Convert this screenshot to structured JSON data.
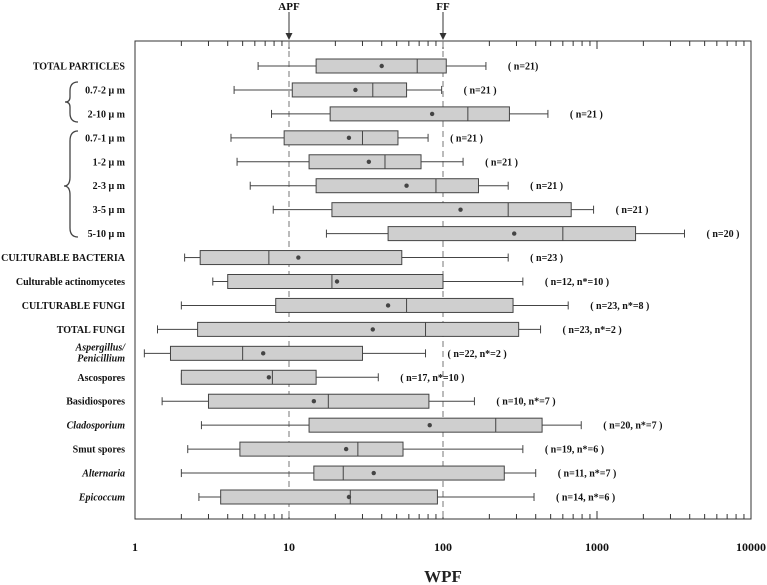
{
  "chart_data": {
    "type": "boxplot",
    "xlabel": "WPF",
    "xscale": "log",
    "xlim": [
      1,
      10000
    ],
    "xticks": [
      "1",
      "10",
      "100",
      "1000",
      "10000"
    ],
    "reference_lines": [
      {
        "label": "APF",
        "x": 10
      },
      {
        "label": "FF",
        "x": 100
      }
    ],
    "categories": [
      {
        "label": "TOTAL PARTICLES",
        "style": "bold",
        "whisker_low": 6.3,
        "q1": 15,
        "median": 68,
        "q3": 105,
        "whisker_high": 190,
        "mean": 40,
        "n": "( n=21)"
      },
      {
        "label": "0.7-2 μ m",
        "style": "bold",
        "whisker_low": 4.4,
        "q1": 10.5,
        "median": 35,
        "q3": 58,
        "whisker_high": 98,
        "mean": 27,
        "n": "( n=21 )"
      },
      {
        "label": "2-10 μ m",
        "style": "bold",
        "whisker_low": 7.7,
        "q1": 18.5,
        "median": 145,
        "q3": 270,
        "whisker_high": 480,
        "mean": 85,
        "n": "( n=21 )"
      },
      {
        "label": "0.7-1 μ m",
        "style": "bold",
        "whisker_low": 4.2,
        "q1": 9.3,
        "median": 30,
        "q3": 51,
        "whisker_high": 80,
        "mean": 24.5,
        "n": "( n=21 )"
      },
      {
        "label": "1-2 μ m",
        "style": "bold",
        "whisker_low": 4.6,
        "q1": 13.5,
        "median": 42,
        "q3": 72,
        "whisker_high": 135,
        "mean": 33,
        "n": "( n=21 )"
      },
      {
        "label": "2-3 μ m",
        "style": "bold",
        "whisker_low": 5.6,
        "q1": 15,
        "median": 90,
        "q3": 170,
        "whisker_high": 265,
        "mean": 58,
        "n": "( n=21 )"
      },
      {
        "label": "3-5 μ m",
        "style": "bold",
        "whisker_low": 7.9,
        "q1": 19,
        "median": 265,
        "q3": 680,
        "whisker_high": 950,
        "mean": 130,
        "n": "( n=21 )"
      },
      {
        "label": "5-10 μ m",
        "style": "bold",
        "whisker_low": 17.5,
        "q1": 44,
        "median": 600,
        "q3": 1780,
        "whisker_high": 3700,
        "mean": 290,
        "n": "( n=20 )"
      },
      {
        "label": "CULTURABLE BACTERIA",
        "style": "bold",
        "whisker_low": 2.1,
        "q1": 2.65,
        "median": 7.4,
        "q3": 54,
        "whisker_high": 265,
        "mean": 11.5,
        "n": "( n=23 )"
      },
      {
        "label": "Culturable actinomycetes",
        "style": "normal",
        "whisker_low": 3.2,
        "q1": 4.0,
        "median": 19,
        "q3": 100,
        "whisker_high": 330,
        "mean": 20.5,
        "n": "( n=12, n*=10 )"
      },
      {
        "label": "CULTURABLE FUNGI",
        "style": "bold",
        "whisker_low": 2.0,
        "q1": 8.2,
        "median": 58,
        "q3": 285,
        "whisker_high": 650,
        "mean": 44,
        "n": "( n=23, n*=8 )"
      },
      {
        "label": "TOTAL FUNGI",
        "style": "bold",
        "whisker_low": 1.4,
        "q1": 2.55,
        "median": 77,
        "q3": 310,
        "whisker_high": 430,
        "mean": 35,
        "n": "( n=23, n*=2 )"
      },
      {
        "label": "Aspergillus/ Penicillium",
        "style": "italic",
        "whisker_low": 1.15,
        "q1": 1.7,
        "median": 5.0,
        "q3": 30,
        "whisker_high": 77,
        "mean": 6.8,
        "n": "( n=22, n*=2 )"
      },
      {
        "label": "Ascospores",
        "style": "normal",
        "whisker_low": 2.0,
        "q1": 2.0,
        "median": 7.8,
        "q3": 15,
        "whisker_high": 38,
        "mean": 7.4,
        "n": "( n=17, n*=10 )"
      },
      {
        "label": "Basidiospores",
        "style": "normal",
        "whisker_low": 1.5,
        "q1": 3.0,
        "median": 18,
        "q3": 81,
        "whisker_high": 160,
        "mean": 14.5,
        "n": "( n=10, n*=7 )"
      },
      {
        "label": "Cladosporium",
        "style": "italic",
        "whisker_low": 2.7,
        "q1": 13.5,
        "median": 220,
        "q3": 440,
        "whisker_high": 790,
        "mean": 82,
        "n": "( n=20, n*=7 )"
      },
      {
        "label": "Smut spores",
        "style": "normal",
        "whisker_low": 2.2,
        "q1": 4.8,
        "median": 28,
        "q3": 55,
        "whisker_high": 330,
        "mean": 23.5,
        "n": "( n=19, n*=6 )"
      },
      {
        "label": "Alternaria",
        "style": "italic",
        "whisker_low": 2.0,
        "q1": 14.5,
        "median": 22.5,
        "q3": 250,
        "whisker_high": 400,
        "mean": 35.5,
        "n": "( n=11, n*=7 )"
      },
      {
        "label": "Epicoccum",
        "style": "italic",
        "whisker_low": 2.6,
        "q1": 3.6,
        "median": 25,
        "q3": 92,
        "whisker_high": 390,
        "mean": 24.5,
        "n": "( n=14, n*=6 )"
      }
    ]
  },
  "colors": {
    "box_fill": "#cfcfcf",
    "stroke": "#444444",
    "reference_line": "#777777"
  }
}
